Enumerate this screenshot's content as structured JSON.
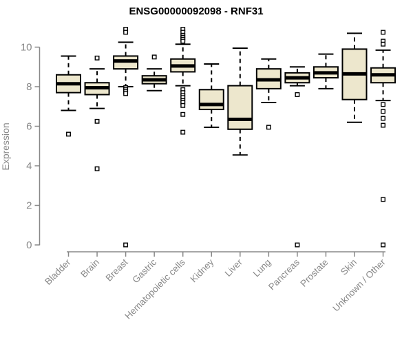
{
  "chart_data": {
    "type": "boxplot",
    "title": "ENSG00000092098 - RNF31",
    "ylabel": "Expression",
    "xlabel": "",
    "ylim": [
      0,
      11
    ],
    "yticks": [
      0,
      2,
      4,
      6,
      8,
      10
    ],
    "grid": false,
    "legend": "none",
    "colors": {
      "box_fill": "#EDE7CD",
      "box_stroke": "#000000",
      "median": "#000000",
      "whisker": "#000000",
      "outlier_fill": "#ffffff",
      "outlier_stroke": "#000000",
      "axis": "#888888",
      "tick_label": "#888888",
      "title": "#000000"
    },
    "categories": [
      "Bladder",
      "Brain",
      "Breast",
      "Gastric",
      "Hematopoietic cells",
      "Kidney",
      "Liver",
      "Lung",
      "Pancreas",
      "Prostate",
      "Skin",
      "Unknown / Other"
    ],
    "series": [
      {
        "category": "Bladder",
        "whisker_low": 6.8,
        "q1": 7.7,
        "median": 8.15,
        "q3": 8.6,
        "whisker_high": 9.55,
        "outliers": [
          5.6
        ]
      },
      {
        "category": "Brain",
        "whisker_low": 6.9,
        "q1": 7.6,
        "median": 7.95,
        "q3": 8.2,
        "whisker_high": 8.9,
        "outliers": [
          9.45,
          6.25,
          3.85
        ]
      },
      {
        "category": "Breast",
        "whisker_low": 8.0,
        "q1": 8.9,
        "median": 9.3,
        "q3": 9.55,
        "whisker_high": 10.25,
        "outliers": [
          10.9,
          10.75,
          7.95,
          7.85,
          7.75,
          7.65,
          0
        ]
      },
      {
        "category": "Gastric",
        "whisker_low": 7.8,
        "q1": 8.15,
        "median": 8.35,
        "q3": 8.55,
        "whisker_high": 8.9,
        "outliers": [
          9.5
        ]
      },
      {
        "category": "Hematopoietic cells",
        "whisker_low": 8.05,
        "q1": 8.75,
        "median": 9.05,
        "q3": 9.4,
        "whisker_high": 10.15,
        "outliers": [
          10.9,
          10.75,
          10.6,
          10.5,
          10.4,
          10.3,
          7.85,
          7.7,
          7.55,
          7.45,
          7.3,
          7.2,
          7.05,
          6.6,
          5.7
        ]
      },
      {
        "category": "Kidney",
        "whisker_low": 5.95,
        "q1": 6.85,
        "median": 7.1,
        "q3": 7.85,
        "whisker_high": 9.15,
        "outliers": []
      },
      {
        "category": "Liver",
        "whisker_low": 4.55,
        "q1": 5.85,
        "median": 6.35,
        "q3": 8.05,
        "whisker_high": 9.95,
        "outliers": []
      },
      {
        "category": "Lung",
        "whisker_low": 7.2,
        "q1": 7.9,
        "median": 8.35,
        "q3": 8.9,
        "whisker_high": 9.4,
        "outliers": [
          5.95
        ]
      },
      {
        "category": "Pancreas",
        "whisker_low": 8.05,
        "q1": 8.2,
        "median": 8.45,
        "q3": 8.7,
        "whisker_high": 9.0,
        "outliers": [
          7.6,
          0
        ]
      },
      {
        "category": "Prostate",
        "whisker_low": 7.9,
        "q1": 8.45,
        "median": 8.7,
        "q3": 9.0,
        "whisker_high": 9.65,
        "outliers": []
      },
      {
        "category": "Skin",
        "whisker_low": 6.2,
        "q1": 7.35,
        "median": 8.65,
        "q3": 9.9,
        "whisker_high": 10.7,
        "outliers": []
      },
      {
        "category": "Unknown / Other",
        "whisker_low": 7.3,
        "q1": 8.2,
        "median": 8.6,
        "q3": 8.95,
        "whisker_high": 9.85,
        "outliers": [
          10.75,
          10.3,
          10.15,
          7.1,
          6.75,
          6.4,
          6.05,
          2.3,
          0
        ]
      }
    ]
  }
}
